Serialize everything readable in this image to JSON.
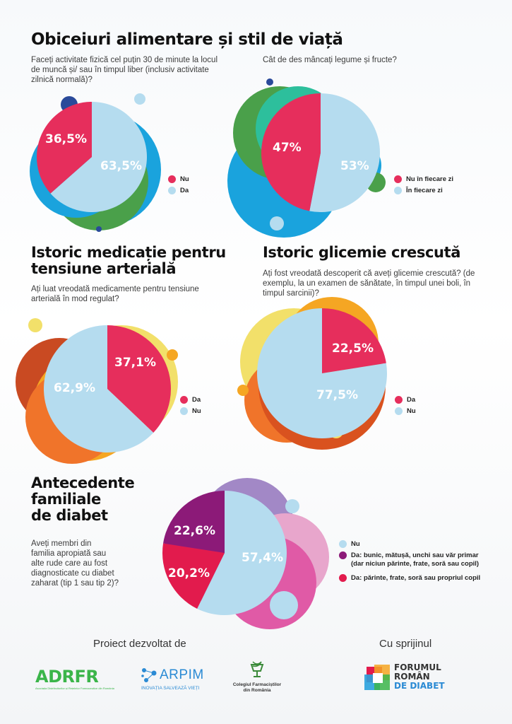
{
  "title_main": "Obiceiuri alimentare și stil de viață",
  "colors": {
    "pink": "#e62e5c",
    "lightblue": "#b5dcef",
    "purple": "#8c1a78",
    "red": "#e21b4d"
  },
  "chart_data": [
    {
      "type": "pie",
      "question": "Faceți activitate fizică  cel puțin 30 de minute la locul de muncă și/ sau în timpul liber (inclusiv activitate zilnică normală)?",
      "slices": [
        {
          "label": "Nu",
          "value": 36.5,
          "display": "36,5%",
          "color": "#e62e5c"
        },
        {
          "label": "Da",
          "value": 63.5,
          "display": "63,5%",
          "color": "#b5dcef"
        }
      ]
    },
    {
      "type": "pie",
      "question": "Cât de des mâncați legume și fructe?",
      "slices": [
        {
          "label": "Nu în fiecare zi",
          "value": 47,
          "display": "47%",
          "color": "#e62e5c"
        },
        {
          "label": "În fiecare zi",
          "value": 53,
          "display": "53%",
          "color": "#b5dcef"
        }
      ]
    },
    {
      "type": "pie",
      "title": "Istoric medicație pentru tensiune arterială",
      "question": "Ați luat vreodată medicamente pentru tensiune arterială în mod regulat?",
      "slices": [
        {
          "label": "Da",
          "value": 37.1,
          "display": "37,1%",
          "color": "#e62e5c"
        },
        {
          "label": "Nu",
          "value": 62.9,
          "display": "62,9%",
          "color": "#b5dcef"
        }
      ]
    },
    {
      "type": "pie",
      "title": "Istoric glicemie crescută",
      "question": "Ați fost vreodată descoperit că aveți glicemie crescută? (de exemplu, la un examen de sănătate, în timpul unei boli, în timpul sarcinii)?",
      "slices": [
        {
          "label": "Da",
          "value": 22.5,
          "display": "22,5%",
          "color": "#e62e5c"
        },
        {
          "label": "Nu",
          "value": 77.5,
          "display": "77,5%",
          "color": "#b5dcef"
        }
      ]
    },
    {
      "type": "pie",
      "title": "Antecedente familiale de diabet",
      "question": "Aveți membri din familia apropiată sau alte rude care au fost diagnosticate cu diabet zaharat (tip 1 sau tip 2)?",
      "slices": [
        {
          "label": "Nu",
          "value": 57.4,
          "display": "57,4%",
          "color": "#b5dcef"
        },
        {
          "label": "Da: bunic, mătușă, unchi sau văr primar (dar niciun părinte, frate, soră sau copil)",
          "value": 22.6,
          "display": "22,6%",
          "color": "#8c1a78"
        },
        {
          "label": "Da: părinte, frate, soră sau propriul copil",
          "value": 20.2,
          "display": "20,2%",
          "color": "#e21b4d"
        }
      ]
    }
  ],
  "section3_title_lines": [
    "Istoric medicație pentru",
    "tensiune arterială"
  ],
  "section5_title_lines": [
    "Antecedente",
    "familiale",
    "de diabet"
  ],
  "q5_lines": [
    "Aveți membri din",
    "familia apropiată sau",
    "alte rude care au fost",
    "diagnosticate cu diabet",
    "zaharat (tip 1 sau tip 2)?"
  ],
  "legend5_line2": [
    "Da: bunic, mătușă, unchi sau văr primar",
    "(dar niciun părinte, frate, soră sau copil)"
  ],
  "footer": {
    "developed_by": "Proiect dezvoltat de",
    "supported_by": "Cu sprijinul",
    "adrfr_logo": "ADRFR",
    "adrfr_subtitle": "Asociația Distribuitorilor și Rețelelor Farmaceutice din România",
    "arpim_logo": "ARPIM",
    "arpim_tagline": "INOVAȚIA SALVEAZĂ VIEȚI",
    "cfr_line1": "Colegiul Farmaciștilor",
    "cfr_line2": "din România",
    "frd_line1": "FORUMUL",
    "frd_line2": "ROMÂN",
    "frd_line3": "DE DIABET"
  }
}
